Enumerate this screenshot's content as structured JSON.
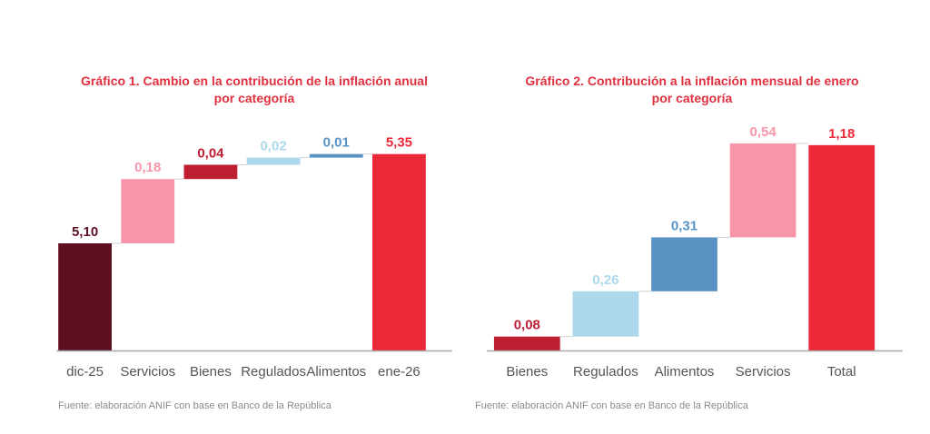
{
  "chart_data": [
    {
      "type": "bar",
      "subtype": "waterfall",
      "title": "Gráfico 1.  Cambio en la contribución de la inflación anual por categoría",
      "title_lines": [
        "Gráfico 1.  Cambio en la contribución de la inflación anual",
        "por categoría"
      ],
      "categories": [
        "dic-25",
        "Servicios",
        "Bienes",
        "Regulados",
        "Alimentos",
        "ene-26"
      ],
      "values": [
        5.1,
        0.18,
        0.04,
        0.02,
        0.01,
        5.35
      ],
      "labels": [
        "5,10",
        "0,18",
        "0,04",
        "0,02",
        "0,01",
        "5,35"
      ],
      "kinds": [
        "total",
        "delta",
        "delta",
        "delta",
        "delta",
        "total"
      ],
      "colors": [
        "#5e0f22",
        "#f796a8",
        "#be1e32",
        "#acd8ec",
        "#5a92c4",
        "#ec2939"
      ],
      "xlabel": "",
      "ylabel": "",
      "ylim": [
        4.8,
        5.4
      ],
      "grid": false,
      "legend": "none",
      "source": "Fuente: elaboración ANIF con base en Banco de la República"
    },
    {
      "type": "bar",
      "subtype": "waterfall",
      "title": "Gráfico 2. Contribución a la inflación mensual de enero por categoría",
      "title_lines": [
        "Gráfico 2. Contribución a la inflación mensual de enero",
        "por categoría"
      ],
      "categories": [
        "Bienes",
        "Regulados",
        "Alimentos",
        "Servicios",
        "Total"
      ],
      "values": [
        0.08,
        0.26,
        0.31,
        0.54,
        1.18
      ],
      "labels": [
        "0,08",
        "0,26",
        "0,31",
        "0,54",
        "1,18"
      ],
      "kinds": [
        "delta",
        "delta",
        "delta",
        "delta",
        "total"
      ],
      "colors": [
        "#be1e32",
        "#acd8ec",
        "#5a92c4",
        "#f796a8",
        "#ec2939"
      ],
      "xlabel": "",
      "ylabel": "",
      "ylim": [
        0,
        1.2
      ],
      "grid": false,
      "legend": "none",
      "source": "Fuente: elaboración ANIF con base en Banco de la República"
    }
  ]
}
